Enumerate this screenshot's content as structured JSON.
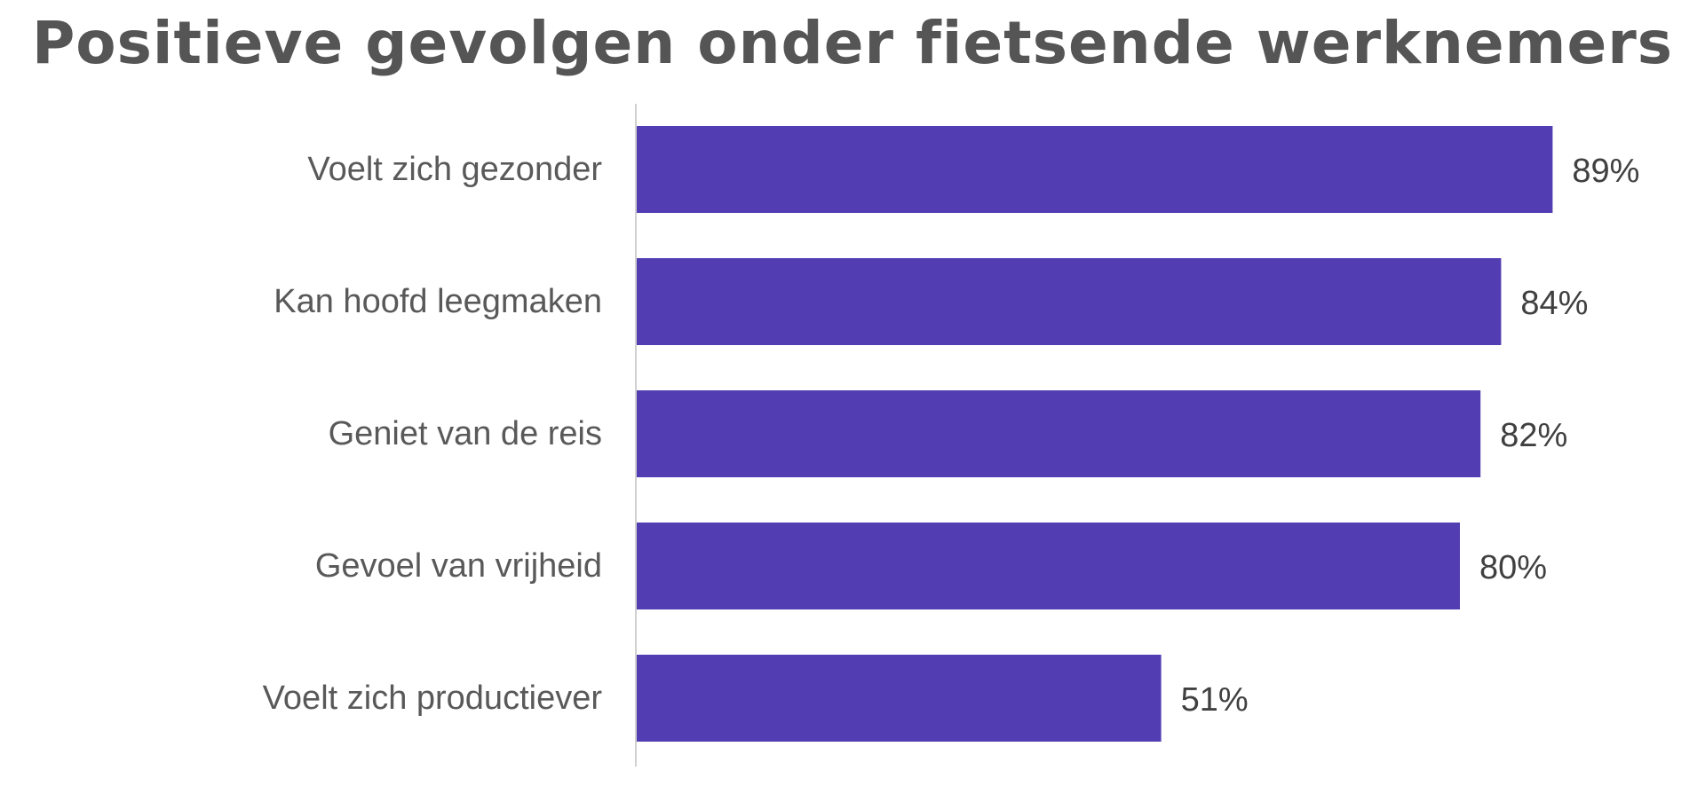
{
  "chart_data": {
    "type": "bar",
    "orientation": "horizontal",
    "title": "Positieve gevolgen onder fietsende werknemers",
    "categories": [
      "Voelt zich gezonder",
      "Kan hoofd leegmaken",
      "Geniet van de reis",
      "Gevoel van vrijheid",
      "Voelt zich productiever"
    ],
    "values": [
      89,
      84,
      82,
      80,
      51
    ],
    "value_labels": [
      "89%",
      "84%",
      "82%",
      "80%",
      "51%"
    ],
    "xlim": [
      0,
      100
    ],
    "grid": false,
    "legend": "none",
    "bar_color": "#523EB2",
    "axis_color": "#D0D0D0"
  }
}
